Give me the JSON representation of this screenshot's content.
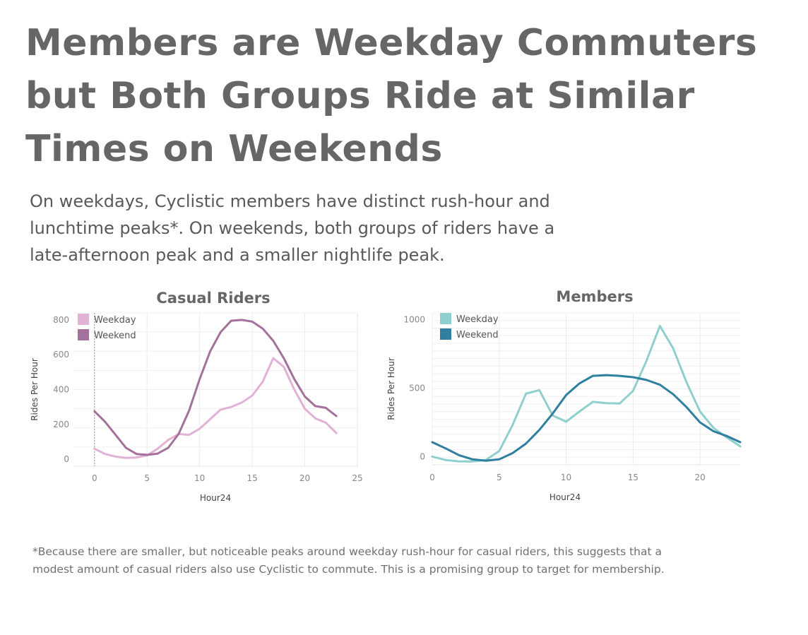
{
  "title": "Members are Weekday Commuters but Both Groups Ride at Similar Times on Weekends",
  "subtitle": "On weekdays, Cyclistic members have distinct rush-hour and lunchtime peaks*. On weekends, both groups of riders have a late-afternoon peak and a smaller nightlife peak.",
  "footnote": "*Because there are smaller, but noticeable peaks around weekday rush-hour for casual riders, this suggests that a modest amount of casual riders also use Cyclistic to commute. This is a promising group to target for membership.",
  "chart_data": [
    {
      "type": "line",
      "title": "Casual Riders",
      "xlabel": "Hour24",
      "ylabel": "Rides Per Hour",
      "xlim": [
        -2,
        25
      ],
      "ylim": [
        -40,
        840
      ],
      "xticks": [
        0,
        5,
        10,
        15,
        20,
        25
      ],
      "yticks": [
        0,
        200,
        400,
        600,
        800
      ],
      "grid": true,
      "legend": "top-left",
      "x": [
        0,
        1,
        2,
        3,
        4,
        5,
        6,
        7,
        8,
        9,
        10,
        11,
        12,
        13,
        14,
        15,
        16,
        17,
        18,
        19,
        20,
        21,
        22,
        23
      ],
      "series": [
        {
          "name": "Weekday",
          "color": "#e2b1d6",
          "values": [
            60,
            30,
            15,
            8,
            10,
            22,
            60,
            110,
            145,
            140,
            175,
            230,
            285,
            300,
            325,
            365,
            445,
            580,
            530,
            400,
            290,
            235,
            210,
            150
          ]
        },
        {
          "name": "Weekend",
          "color": "#a3719c",
          "values": [
            275,
            215,
            140,
            65,
            30,
            25,
            32,
            65,
            145,
            280,
            460,
            620,
            730,
            795,
            800,
            790,
            750,
            680,
            580,
            460,
            360,
            305,
            295,
            248
          ]
        }
      ]
    },
    {
      "type": "line",
      "title": "Members",
      "xlabel": "Hour24",
      "ylabel": "Rides Per Hour",
      "xlim": [
        0,
        23
      ],
      "ylim": [
        -60,
        1050
      ],
      "xticks": [
        0,
        5,
        10,
        15,
        20
      ],
      "yticks": [
        0,
        500,
        1000
      ],
      "grid": true,
      "legend": "top-left",
      "x": [
        0,
        1,
        2,
        3,
        4,
        5,
        6,
        7,
        8,
        9,
        10,
        11,
        12,
        13,
        14,
        15,
        16,
        17,
        18,
        19,
        20,
        21,
        22,
        23
      ],
      "series": [
        {
          "name": "Weekday",
          "color": "#8fcfcd",
          "values": [
            0,
            -25,
            -35,
            -35,
            -25,
            40,
            230,
            460,
            485,
            300,
            255,
            330,
            400,
            390,
            388,
            480,
            700,
            955,
            790,
            540,
            330,
            210,
            140,
            75
          ]
        },
        {
          "name": "Weekend",
          "color": "#2f7f9e",
          "values": [
            105,
            60,
            10,
            -20,
            -30,
            -20,
            25,
            95,
            195,
            315,
            450,
            535,
            590,
            595,
            590,
            580,
            560,
            525,
            455,
            360,
            250,
            185,
            150,
            105
          ]
        }
      ]
    }
  ]
}
